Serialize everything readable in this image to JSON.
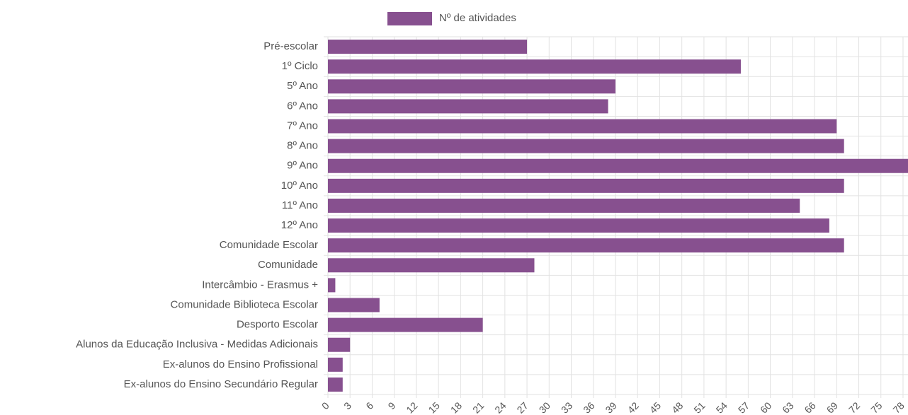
{
  "chart_data": {
    "type": "barh",
    "legend": "Nº de atividades",
    "color": "#87508f",
    "categories": [
      "Pré-escolar",
      "1º Ciclo",
      "5º Ano",
      "6º Ano",
      "7º Ano",
      "8º Ano",
      "9º Ano",
      "10º Ano",
      "11º Ano",
      "12º Ano",
      "Comunidade Escolar",
      "Comunidade",
      "Intercâmbio - Erasmus +",
      "Comunidade Biblioteca Escolar",
      "Desporto Escolar",
      "Alunos da Educação Inclusiva - Medidas Adicionais",
      "Ex-alunos do Ensino Profissional",
      "Ex-alunos do Ensino Secundário Regular"
    ],
    "values": [
      27,
      56,
      39,
      38,
      69,
      70,
      80,
      70,
      64,
      68,
      70,
      28,
      1,
      7,
      21,
      3,
      2,
      2
    ],
    "xlim": [
      0,
      81
    ],
    "xticks": [
      0,
      3,
      6,
      9,
      12,
      15,
      18,
      21,
      24,
      27,
      30,
      33,
      36,
      39,
      42,
      45,
      48,
      51,
      54,
      57,
      60,
      63,
      66,
      69,
      72,
      75,
      78
    ],
    "grid": true
  }
}
